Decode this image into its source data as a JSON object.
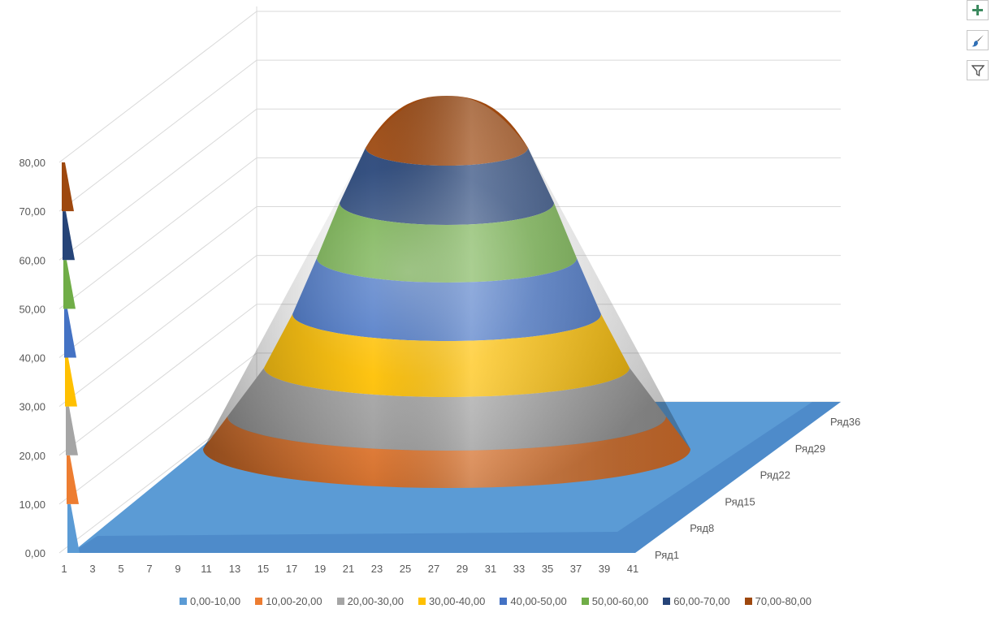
{
  "chart_data": {
    "type": "surface",
    "title": "",
    "z_axis": {
      "range": [
        0,
        80
      ],
      "tick_labels": [
        "0,00",
        "10,00",
        "20,00",
        "30,00",
        "40,00",
        "50,00",
        "60,00",
        "70,00",
        "80,00"
      ]
    },
    "x_axis": {
      "range": [
        1,
        41
      ],
      "tick_labels": [
        "1",
        "3",
        "5",
        "7",
        "9",
        "11",
        "13",
        "15",
        "17",
        "19",
        "21",
        "23",
        "25",
        "27",
        "29",
        "31",
        "33",
        "35",
        "37",
        "39",
        "41"
      ]
    },
    "depth_axis": {
      "tick_labels": [
        "Ряд1",
        "Ряд8",
        "Ряд15",
        "Ряд22",
        "Ряд29",
        "Ряд36"
      ]
    },
    "surface": {
      "peak_x": 28,
      "peak_row": 20,
      "peak_value": 80,
      "base_value": 0
    },
    "bands": [
      {
        "label": "0,00-10,00",
        "color": "#5B9BD5"
      },
      {
        "label": "10,00-20,00",
        "color": "#ED7D31"
      },
      {
        "label": "20,00-30,00",
        "color": "#A5A5A5"
      },
      {
        "label": "30,00-40,00",
        "color": "#FFC000"
      },
      {
        "label": "40,00-50,00",
        "color": "#4472C4"
      },
      {
        "label": "50,00-60,00",
        "color": "#70AD47"
      },
      {
        "label": "60,00-70,00",
        "color": "#264478"
      },
      {
        "label": "70,00-80,00",
        "color": "#9E480E"
      }
    ],
    "legend_position": "bottom",
    "grid": true
  },
  "toolbar": {
    "buttons": [
      {
        "icon": "plus-icon",
        "color": "#3c8a5f"
      },
      {
        "icon": "paintbrush-icon",
        "color": "#2f6fb5"
      },
      {
        "icon": "filter-icon",
        "color": "#555555"
      }
    ]
  }
}
